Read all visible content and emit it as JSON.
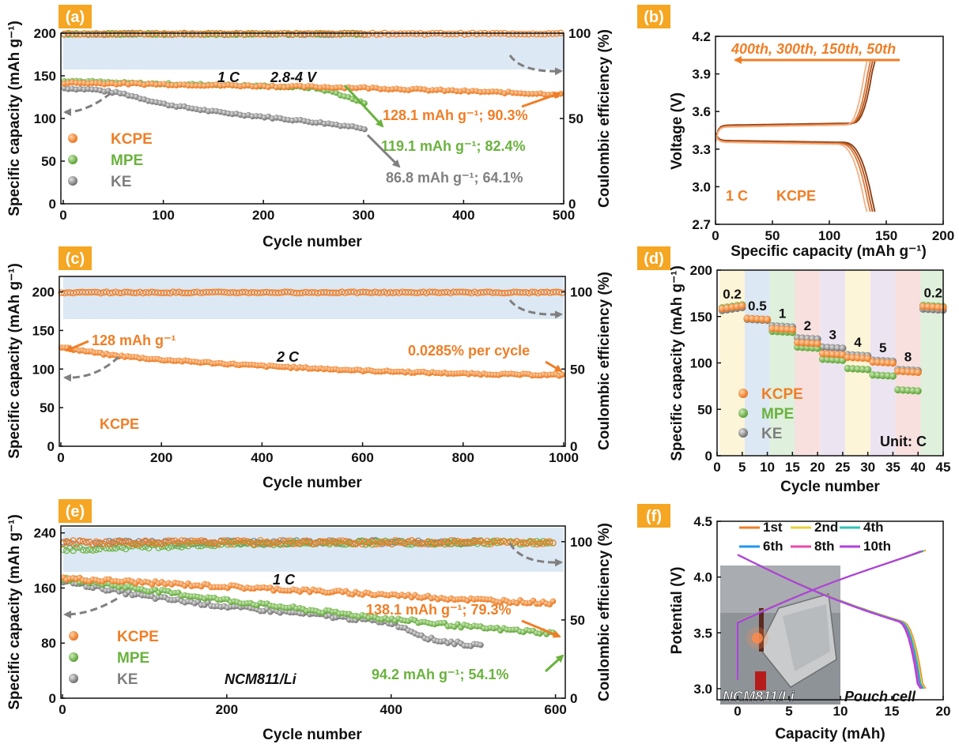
{
  "colors": {
    "kcpe": "#F07E26",
    "mpe": "#6AB23E",
    "ke": "#7F7F7F",
    "ce_band": "#DCE8F3",
    "panel_label_bg": "#F5A623",
    "arrow": "#7F7F7F"
  },
  "chart_data": [
    {
      "id": "a",
      "panel_label": "(a)",
      "type": "scatter",
      "xlabel": "Cycle number",
      "ylabel": "Specific capacity (mAh g⁻¹)",
      "y2label": "Coulombic efficiency (%)",
      "xlim": [
        0,
        500
      ],
      "ylim": [
        0,
        200
      ],
      "y2lim": [
        0,
        100
      ],
      "xticks": [
        "0",
        "100",
        "200",
        "300",
        "400",
        "500"
      ],
      "yticks": [
        "0",
        "50",
        "100",
        "150",
        "200"
      ],
      "y2ticks": [
        "0",
        "50",
        "100"
      ],
      "series": [
        {
          "name": "KCPE",
          "color": "kcpe",
          "x": [
            1,
            100,
            200,
            300,
            400,
            500
          ],
          "capacity": [
            141.8,
            140,
            138,
            136,
            132,
            128.1
          ],
          "ce": [
            99.6,
            99.7,
            99.7,
            99.7,
            99.7,
            99.7
          ]
        },
        {
          "name": "MPE",
          "color": "mpe",
          "x": [
            1,
            50,
            100,
            150,
            200,
            250,
            270,
            300,
            303
          ],
          "capacity": [
            144.6,
            142,
            140.5,
            139.5,
            138,
            136,
            131,
            118,
            119.1
          ],
          "ce": [
            99.4,
            99.5,
            99.5,
            99.5,
            99.5,
            99.5,
            99.5,
            99.5,
            99.5
          ]
        },
        {
          "name": "KE",
          "color": "ke",
          "x": [
            1,
            30,
            60,
            100,
            150,
            200,
            250,
            300,
            303
          ],
          "capacity": [
            135.4,
            134,
            129,
            117,
            108,
            102,
            96,
            89,
            86.8
          ],
          "ce": [
            99.5,
            99.5,
            99.5,
            99.5,
            99.5,
            99.5,
            99.5,
            99.5,
            99.5
          ]
        }
      ],
      "annotations": {
        "rate": "1 C",
        "voltage": "2.8-4 V",
        "kcpe_end": "128.1 mAh g⁻¹; 90.3%",
        "mpe_end": "119.1 mAh g⁻¹; 82.4%",
        "ke_end": "86.8 mAh g⁻¹; 64.1%"
      },
      "legend": [
        "KCPE",
        "MPE",
        "KE"
      ]
    },
    {
      "id": "b",
      "panel_label": "(b)",
      "type": "line",
      "xlabel": "Specific capacity (mAh g⁻¹)",
      "ylabel": "Voltage (V)",
      "xlim": [
        0,
        200
      ],
      "ylim": [
        2.7,
        4.2
      ],
      "xticks": [
        "0",
        "50",
        "100",
        "150",
        "200"
      ],
      "yticks": [
        "2.7",
        "3.0",
        "3.3",
        "3.6",
        "3.9",
        "4.2"
      ],
      "curves": [
        {
          "cycle": "50th",
          "capacity": 140,
          "charge_plateau": 3.49,
          "discharge_plateau": 3.37
        },
        {
          "cycle": "150th",
          "capacity": 138,
          "charge_plateau": 3.485,
          "discharge_plateau": 3.365
        },
        {
          "cycle": "300th",
          "capacity": 136,
          "charge_plateau": 3.48,
          "discharge_plateau": 3.36
        },
        {
          "cycle": "400th",
          "capacity": 133,
          "charge_plateau": 3.475,
          "discharge_plateau": 3.355
        }
      ],
      "annotations": {
        "cycles": "400th, 300th, 150th, 50th",
        "rate": "1 C",
        "sample": "KCPE"
      }
    },
    {
      "id": "c",
      "panel_label": "(c)",
      "type": "scatter",
      "xlabel": "Cycle number",
      "ylabel": "Specific capacity (mAh g⁻¹)",
      "y2label": "Coulombic efficiency (%)",
      "xlim": [
        0,
        1000
      ],
      "ylim": [
        0,
        220
      ],
      "y2lim": [
        0,
        110
      ],
      "xticks": [
        "0",
        "200",
        "400",
        "600",
        "800",
        "1000"
      ],
      "yticks": [
        "0",
        "50",
        "100",
        "150",
        "200"
      ],
      "y2ticks": [
        "0",
        "50",
        "100"
      ],
      "series": [
        {
          "name": "KCPE",
          "color": "kcpe",
          "x": [
            1,
            100,
            200,
            400,
            600,
            800,
            1000
          ],
          "capacity": [
            128,
            118,
            112,
            104,
            98,
            94,
            92
          ],
          "ce": [
            99.5,
            99.6,
            99.6,
            99.6,
            99.6,
            99.6,
            99.6
          ]
        }
      ],
      "annotations": {
        "initial": "128 mAh g⁻¹",
        "rate": "2 C",
        "decay": "0.0285% per cycle",
        "sample": "KCPE"
      }
    },
    {
      "id": "d",
      "panel_label": "(d)",
      "type": "scatter",
      "xlabel": "Cycle number",
      "ylabel": "Specific capacity (mAh g⁻¹)",
      "xlim": [
        0,
        45
      ],
      "ylim": [
        0,
        200
      ],
      "xticks": [
        "0",
        "5",
        "10",
        "15",
        "20",
        "25",
        "30",
        "35",
        "40",
        "45"
      ],
      "yticks": [
        "0",
        "50",
        "100",
        "150",
        "200"
      ],
      "rates": [
        "0.2",
        "0.5",
        "1",
        "2",
        "3",
        "4",
        "5",
        "8",
        "0.2"
      ],
      "band_colors": [
        "#FDF5D8",
        "#DCE8F3",
        "#DFF0DC",
        "#F8E0DF",
        "#ECE4F1",
        "#FDF5D8",
        "#ECE4F1",
        "#F8E0DF",
        "#DFF0DC"
      ],
      "series": [
        {
          "name": "KCPE",
          "color": "kcpe",
          "values": [
            160,
            148,
            137,
            122,
            110,
            106,
            101,
            91,
            161
          ]
        },
        {
          "name": "MPE",
          "color": "mpe",
          "values": [
            161,
            148,
            134,
            117,
            104,
            94,
            87,
            71,
            162
          ]
        },
        {
          "name": "KE",
          "color": "ke",
          "values": [
            158,
            147,
            140,
            127,
            117,
            109,
            103,
            93,
            158
          ]
        }
      ],
      "unit": "Unit: C",
      "legend": [
        "KCPE",
        "MPE",
        "KE"
      ]
    },
    {
      "id": "e",
      "panel_label": "(e)",
      "type": "scatter",
      "xlabel": "Cycle number",
      "ylabel": "Specific capacity (mAh g⁻¹)",
      "y2label": "Coulombic efficiency (%)",
      "xlim": [
        0,
        610
      ],
      "ylim": [
        0,
        250
      ],
      "y2lim": [
        0,
        110
      ],
      "xticks": [
        "0",
        "200",
        "400",
        "600"
      ],
      "yticks": [
        "0",
        "80",
        "160",
        "240"
      ],
      "y2ticks": [
        "0",
        "50",
        "100"
      ],
      "series": [
        {
          "name": "KCPE",
          "color": "kcpe",
          "x": [
            1,
            100,
            200,
            300,
            400,
            500,
            600
          ],
          "capacity": [
            174,
            168,
            162,
            156,
            150,
            143,
            138.1
          ],
          "ce": [
            99.5,
            99.6,
            99.6,
            99.6,
            99.6,
            99.6,
            99.6
          ]
        },
        {
          "name": "MPE",
          "color": "mpe",
          "x": [
            1,
            100,
            200,
            300,
            400,
            500,
            600
          ],
          "capacity": [
            174,
            158,
            142,
            128,
            115,
            103,
            94.2
          ],
          "ce": [
            95,
            97,
            98.5,
            99.2,
            99.4,
            99.5,
            99.5
          ]
        },
        {
          "name": "KE",
          "color": "ke",
          "x": [
            1,
            100,
            200,
            300,
            400,
            450,
            510
          ],
          "capacity": [
            170,
            148,
            133,
            122,
            110,
            85,
            75
          ],
          "ce": [
            99.5,
            99.6,
            99.6,
            99.6,
            99.6,
            99.6,
            99.6
          ]
        }
      ],
      "annotations": {
        "rate": "1 C",
        "kcpe_end": "138.1 mAh g⁻¹; 79.3%",
        "mpe_end": "94.2 mAh g⁻¹; 54.1%",
        "system": "NCM811/Li"
      },
      "legend": [
        "KCPE",
        "MPE",
        "KE"
      ]
    },
    {
      "id": "f",
      "panel_label": "(f)",
      "type": "line",
      "xlabel": "Capacity (mAh)",
      "ylabel": "Potential (V)",
      "xlim": [
        -2,
        20
      ],
      "ylim": [
        2.9,
        4.5
      ],
      "xticks": [
        "0",
        "5",
        "10",
        "15",
        "20"
      ],
      "yticks": [
        "3.0",
        "3.5",
        "4.0",
        "4.5"
      ],
      "curves": [
        {
          "cycle": "1st",
          "color": "#F07E26",
          "capacity": 18.3
        },
        {
          "cycle": "2nd",
          "color": "#E8D23A",
          "capacity": 18.2
        },
        {
          "cycle": "4th",
          "color": "#2EC4B6",
          "capacity": 18.1
        },
        {
          "cycle": "6th",
          "color": "#2196F3",
          "capacity": 18.0
        },
        {
          "cycle": "8th",
          "color": "#E84AA8",
          "capacity": 17.9
        },
        {
          "cycle": "10th",
          "color": "#B040E0",
          "capacity": 17.8
        }
      ],
      "annotations": {
        "photo_label": "NCM811/Li",
        "pouch": "Pouch cell"
      }
    }
  ]
}
